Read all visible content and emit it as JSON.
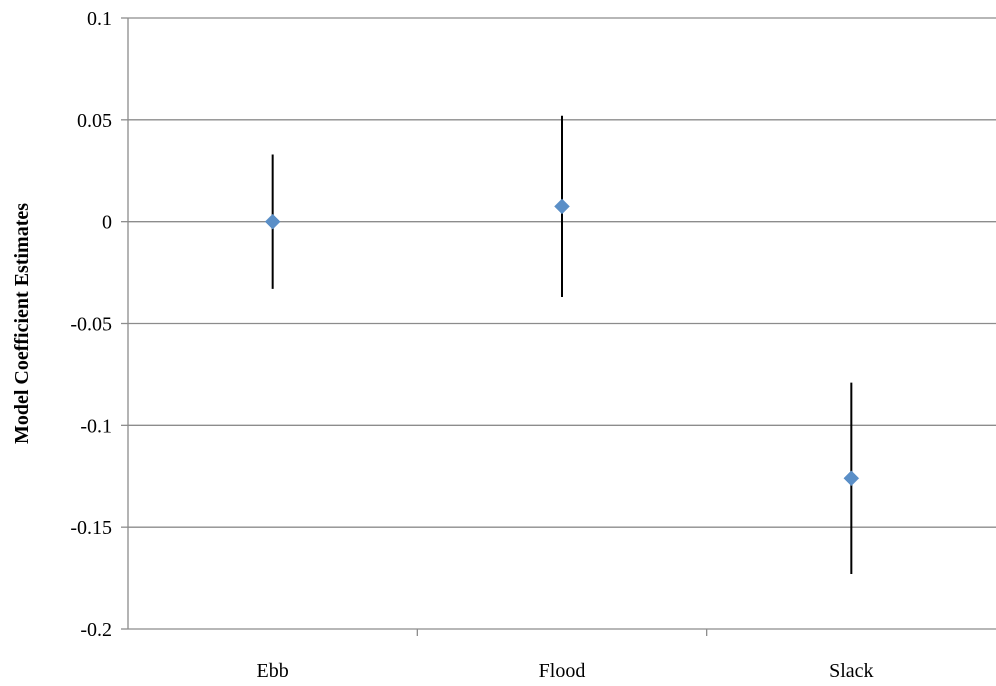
{
  "chart_data": {
    "type": "scatter",
    "title": "",
    "xlabel": "",
    "ylabel": "Model Coefficient Estimates",
    "categories": [
      "Ebb",
      "Flood",
      "Slack"
    ],
    "series": [
      {
        "values": [
          0.0,
          0.0075,
          -0.126
        ],
        "error_low": [
          -0.033,
          -0.037,
          -0.173
        ],
        "error_high": [
          0.033,
          0.052,
          -0.079
        ],
        "color": "#5b8fc7"
      }
    ],
    "ylim": [
      -0.2,
      0.1
    ],
    "yticks": [
      {
        "value": 0.1,
        "label": "0.1"
      },
      {
        "value": 0.05,
        "label": "0.05"
      },
      {
        "value": 0,
        "label": "0"
      },
      {
        "value": -0.05,
        "label": "-0.05"
      },
      {
        "value": -0.1,
        "label": "-0.1"
      },
      {
        "value": -0.15,
        "label": "-0.15"
      },
      {
        "value": -0.2,
        "label": "-0.2"
      }
    ],
    "grid": true,
    "legend": "none"
  }
}
